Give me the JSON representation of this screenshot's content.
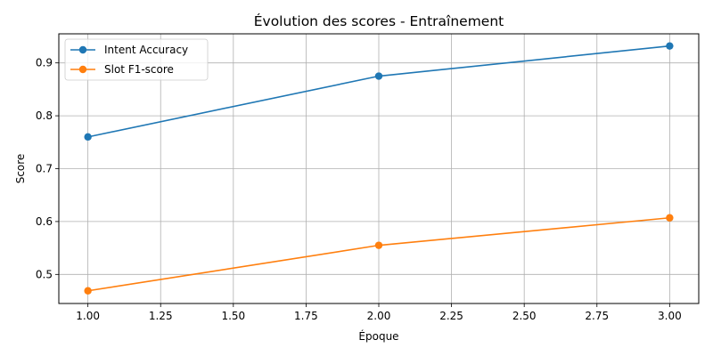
{
  "chart_data": {
    "type": "line",
    "title": "Évolution des scores - Entraînement",
    "xlabel": "Époque",
    "ylabel": "Score",
    "xlim": [
      0.9,
      3.1
    ],
    "ylim": [
      0.445,
      0.955
    ],
    "x_ticks": [
      1.0,
      1.25,
      1.5,
      1.75,
      2.0,
      2.25,
      2.5,
      2.75,
      3.0
    ],
    "x_tick_labels": [
      "1.00",
      "1.25",
      "1.50",
      "1.75",
      "2.00",
      "2.25",
      "2.50",
      "2.75",
      "3.00"
    ],
    "y_ticks": [
      0.5,
      0.6,
      0.7,
      0.8,
      0.9
    ],
    "y_tick_labels": [
      "0.5",
      "0.6",
      "0.7",
      "0.8",
      "0.9"
    ],
    "grid": true,
    "legend_position": "top-left",
    "x": [
      1,
      2,
      3
    ],
    "series": [
      {
        "name": "Intent Accuracy",
        "color": "#1f77b4",
        "values": [
          0.76,
          0.875,
          0.932
        ]
      },
      {
        "name": "Slot F1-score",
        "color": "#ff7f0e",
        "values": [
          0.469,
          0.555,
          0.607
        ]
      }
    ]
  }
}
